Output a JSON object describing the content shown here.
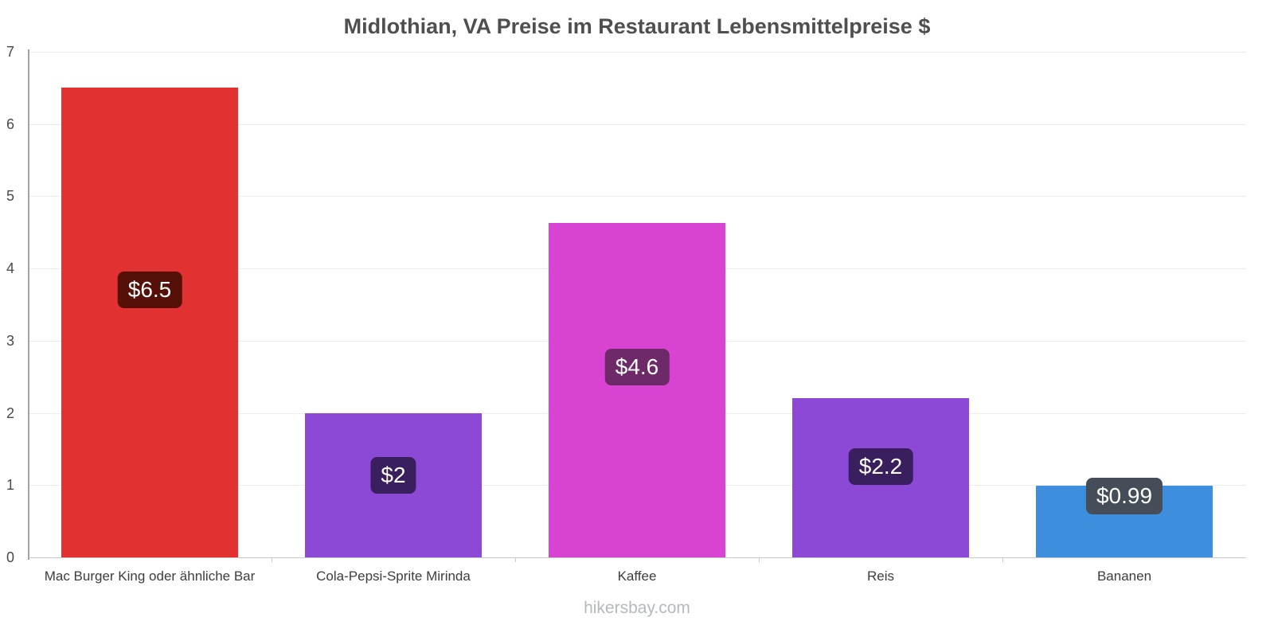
{
  "title": "Midlothian, VA Preise im Restaurant Lebensmittelpreise $",
  "footer": "hikersbay.com",
  "chart_data": {
    "type": "bar",
    "title": "Midlothian, VA Preise im Restaurant Lebensmittelpreise $",
    "categories": [
      "Mac Burger King oder ähnliche Bar",
      "Cola-Pepsi-Sprite Mirinda",
      "Kaffee",
      "Reis",
      "Bananen"
    ],
    "values": [
      6.5,
      2,
      4.63,
      2.2,
      0.99
    ],
    "value_labels": [
      "$6.5",
      "$2",
      "$4.6",
      "$2.2",
      "$0.99"
    ],
    "bar_colors": [
      "#e13231",
      "#8b49d6",
      "#d843d2",
      "#8b49d6",
      "#3d8edc"
    ],
    "label_bg_colors": [
      "#551108",
      "#3a1f5e",
      "#6e2968",
      "#3a1f5e",
      "#454e58"
    ],
    "xlabel": "",
    "ylabel": "",
    "ylim": [
      0,
      7
    ],
    "yticks": [
      0,
      1,
      2,
      3,
      4,
      5,
      6,
      7
    ],
    "grid": true,
    "legend": "none",
    "currency": "$"
  }
}
